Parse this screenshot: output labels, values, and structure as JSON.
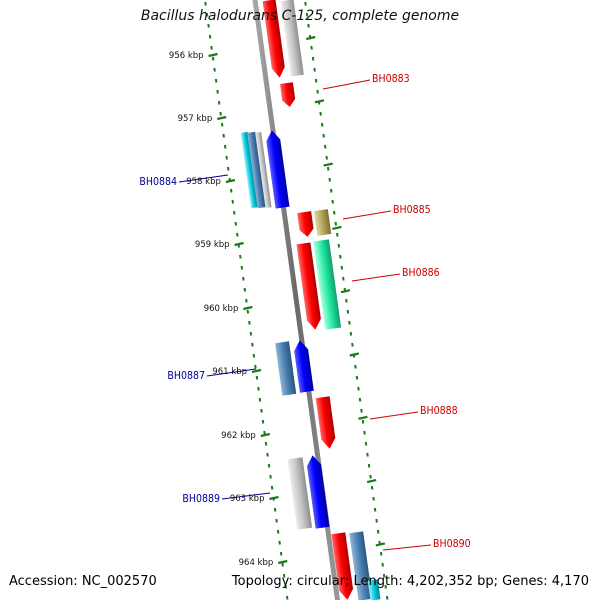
{
  "header": {
    "title": "Bacillus halodurans C-125, complete genome"
  },
  "footer": {
    "accession": "Accession: NC_002570",
    "summary": "Topology: circular; Length: 4,202,352 bp; Genes: 4,170"
  },
  "ruler": {
    "ticks": [
      "956 kbp",
      "957 kbp",
      "958 kbp",
      "959 kbp",
      "960 kbp",
      "961 kbp",
      "962 kbp",
      "963 kbp",
      "964 kbp"
    ]
  },
  "genes": [
    {
      "id": "BH0883",
      "label": "BH0883",
      "color": "#cc0000"
    },
    {
      "id": "BH0884",
      "label": "BH0884",
      "color": "#000099"
    },
    {
      "id": "BH0885",
      "label": "BH0885",
      "color": "#cc0000"
    },
    {
      "id": "BH0886",
      "label": "BH0886",
      "color": "#cc0000"
    },
    {
      "id": "BH0887",
      "label": "BH0887",
      "color": "#000099"
    },
    {
      "id": "BH0888",
      "label": "BH0888",
      "color": "#cc0000"
    },
    {
      "id": "BH0889",
      "label": "BH0889",
      "color": "#000099"
    },
    {
      "id": "BH0890",
      "label": "BH0890",
      "color": "#cc0000"
    }
  ],
  "colors": {
    "track_dots": "#1a7a1a",
    "backbone": "#7a7a7a",
    "forward_strand": "#ff0000",
    "reverse_strand": "#0000ff",
    "grey_feature": "#b8b8b8",
    "steel_feature": "#4a7fb0",
    "khaki_feature": "#b5a45a",
    "mint_feature": "#22e8a0",
    "cyan_feature": "#00c8d8"
  }
}
